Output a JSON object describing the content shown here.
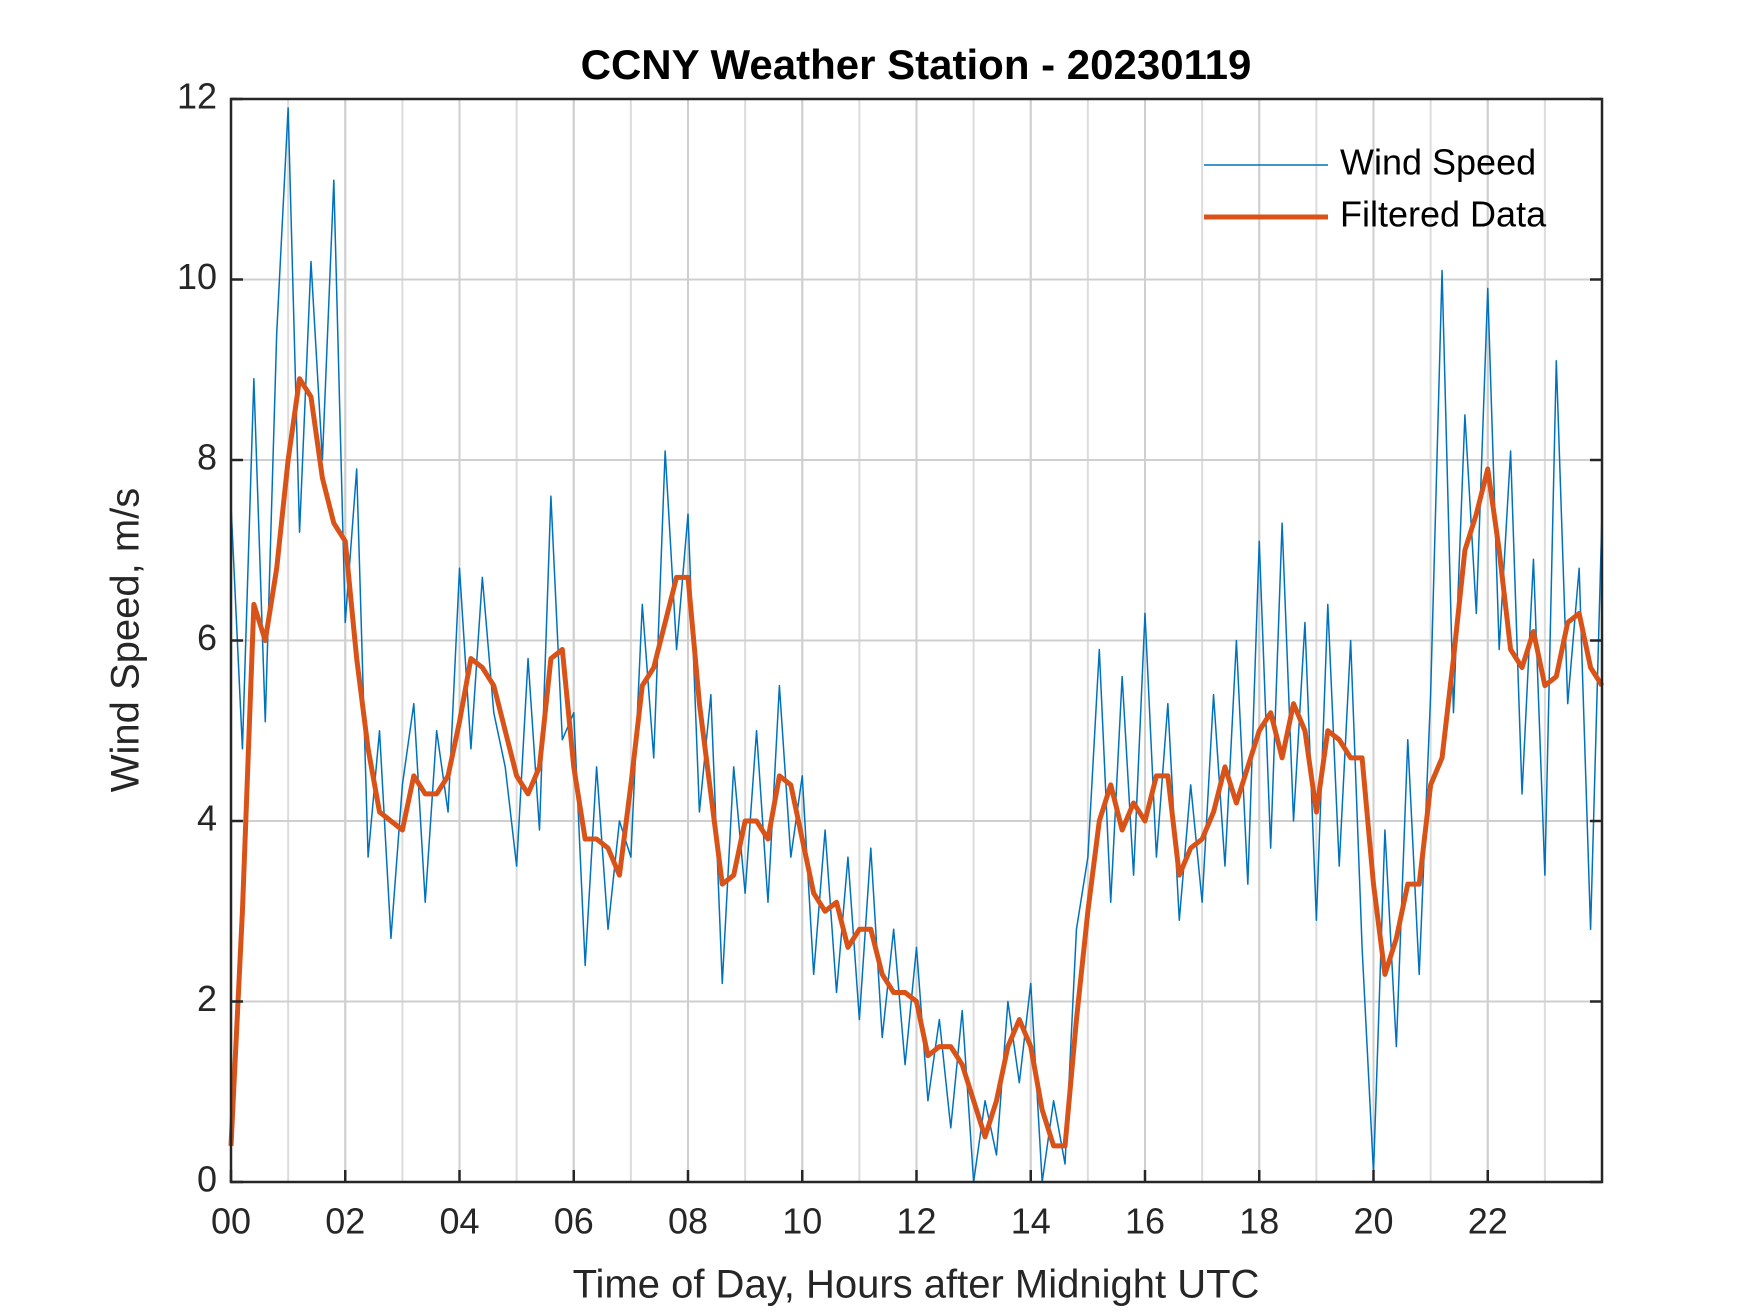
{
  "chart_data": {
    "type": "line",
    "title": "CCNY Weather Station - 20230119",
    "x_label": "Time of Day, Hours after Midnight UTC",
    "y_label": "Wind Speed, m/s",
    "x": [
      0,
      0.2,
      0.4,
      0.6,
      0.8,
      1,
      1.2,
      1.4,
      1.6,
      1.8,
      2,
      2.2,
      2.4,
      2.6,
      2.8,
      3,
      3.2,
      3.4,
      3.6,
      3.8,
      4,
      4.2,
      4.4,
      4.6,
      4.8,
      5,
      5.2,
      5.4,
      5.6,
      5.8,
      6,
      6.2,
      6.4,
      6.6,
      6.8,
      7,
      7.2,
      7.4,
      7.6,
      7.8,
      8,
      8.2,
      8.4,
      8.6,
      8.8,
      9,
      9.2,
      9.4,
      9.6,
      9.8,
      10,
      10.2,
      10.4,
      10.6,
      10.8,
      11,
      11.2,
      11.4,
      11.6,
      11.8,
      12,
      12.2,
      12.4,
      12.6,
      12.8,
      13,
      13.2,
      13.4,
      13.6,
      13.8,
      14,
      14.2,
      14.4,
      14.6,
      14.8,
      15,
      15.2,
      15.4,
      15.6,
      15.8,
      16,
      16.2,
      16.4,
      16.6,
      16.8,
      17,
      17.2,
      17.4,
      17.6,
      17.8,
      18,
      18.2,
      18.4,
      18.6,
      18.8,
      19,
      19.2,
      19.4,
      19.6,
      19.8,
      20,
      20.2,
      20.4,
      20.6,
      20.8,
      21,
      21.2,
      21.4,
      21.6,
      21.8,
      22,
      22.2,
      22.4,
      22.6,
      22.8,
      23,
      23.2,
      23.4,
      23.6,
      23.8,
      24
    ],
    "series": [
      {
        "name": "Wind Speed",
        "color": "#0072BD",
        "width": 1.5,
        "values": [
          7.5,
          4.8,
          8.9,
          5.1,
          9.4,
          11.9,
          7.2,
          10.2,
          8.0,
          11.1,
          6.2,
          7.9,
          3.6,
          5.0,
          2.7,
          4.4,
          5.3,
          3.1,
          5.0,
          4.1,
          6.8,
          4.8,
          6.7,
          5.2,
          4.6,
          3.5,
          5.8,
          3.9,
          7.6,
          4.9,
          5.2,
          2.4,
          4.6,
          2.8,
          4.0,
          3.6,
          6.4,
          4.7,
          8.1,
          5.9,
          7.4,
          4.1,
          5.4,
          2.2,
          4.6,
          3.2,
          5.0,
          3.1,
          5.5,
          3.6,
          4.5,
          2.3,
          3.9,
          2.1,
          3.6,
          1.8,
          3.7,
          1.6,
          2.8,
          1.3,
          2.6,
          0.9,
          1.8,
          0.6,
          1.9,
          0.0,
          0.9,
          0.3,
          2.0,
          1.1,
          2.2,
          0.0,
          0.9,
          0.2,
          2.8,
          3.6,
          5.9,
          3.1,
          5.6,
          3.4,
          6.3,
          3.6,
          5.3,
          2.9,
          4.4,
          3.1,
          5.4,
          3.5,
          6.0,
          3.3,
          7.1,
          3.7,
          7.3,
          4.0,
          6.2,
          2.9,
          6.4,
          3.5,
          6.0,
          2.6,
          0.1,
          3.9,
          1.5,
          4.9,
          2.3,
          5.4,
          10.1,
          5.2,
          8.5,
          6.3,
          9.9,
          5.9,
          8.1,
          4.3,
          6.9,
          3.4,
          9.1,
          5.3,
          6.8,
          2.8,
          7.4
        ]
      },
      {
        "name": "Filtered Data",
        "color": "#D95319",
        "width": 5,
        "values": [
          0.4,
          3.0,
          6.4,
          6.0,
          6.8,
          8.0,
          8.9,
          8.7,
          7.8,
          7.3,
          7.1,
          5.8,
          4.8,
          4.1,
          4.0,
          3.9,
          4.5,
          4.3,
          4.3,
          4.5,
          5.1,
          5.8,
          5.7,
          5.5,
          5.0,
          4.5,
          4.3,
          4.6,
          5.8,
          5.9,
          4.6,
          3.8,
          3.8,
          3.7,
          3.4,
          4.4,
          5.5,
          5.7,
          6.2,
          6.7,
          6.7,
          5.3,
          4.3,
          3.3,
          3.4,
          4.0,
          4.0,
          3.8,
          4.5,
          4.4,
          3.8,
          3.2,
          3.0,
          3.1,
          2.6,
          2.8,
          2.8,
          2.3,
          2.1,
          2.1,
          2.0,
          1.4,
          1.5,
          1.5,
          1.3,
          0.9,
          0.5,
          0.9,
          1.5,
          1.8,
          1.5,
          0.8,
          0.4,
          0.4,
          1.8,
          3.0,
          4.0,
          4.4,
          3.9,
          4.2,
          4.0,
          4.5,
          4.5,
          3.4,
          3.7,
          3.8,
          4.1,
          4.6,
          4.2,
          4.6,
          5.0,
          5.2,
          4.7,
          5.3,
          5.0,
          4.1,
          5.0,
          4.9,
          4.7,
          4.7,
          3.3,
          2.3,
          2.7,
          3.3,
          3.3,
          4.4,
          4.7,
          5.8,
          7.0,
          7.4,
          7.9,
          7.0,
          5.9,
          5.7,
          6.1,
          5.5,
          5.6,
          6.2,
          6.3,
          5.7,
          5.5
        ]
      }
    ],
    "xlim": [
      0,
      24
    ],
    "xticks": [
      {
        "value": 0,
        "label": "00"
      },
      {
        "value": 2,
        "label": "02"
      },
      {
        "value": 4,
        "label": "04"
      },
      {
        "value": 6,
        "label": "06"
      },
      {
        "value": 8,
        "label": "08"
      },
      {
        "value": 10,
        "label": "10"
      },
      {
        "value": 12,
        "label": "12"
      },
      {
        "value": 14,
        "label": "14"
      },
      {
        "value": 16,
        "label": "16"
      },
      {
        "value": 18,
        "label": "18"
      },
      {
        "value": 20,
        "label": "20"
      },
      {
        "value": 22,
        "label": "22"
      }
    ],
    "x_minor_step": 1,
    "ylim": [
      0,
      12
    ],
    "yticks": [
      0,
      2,
      4,
      6,
      8,
      10,
      12
    ],
    "grid": true,
    "legend": "top-right"
  }
}
